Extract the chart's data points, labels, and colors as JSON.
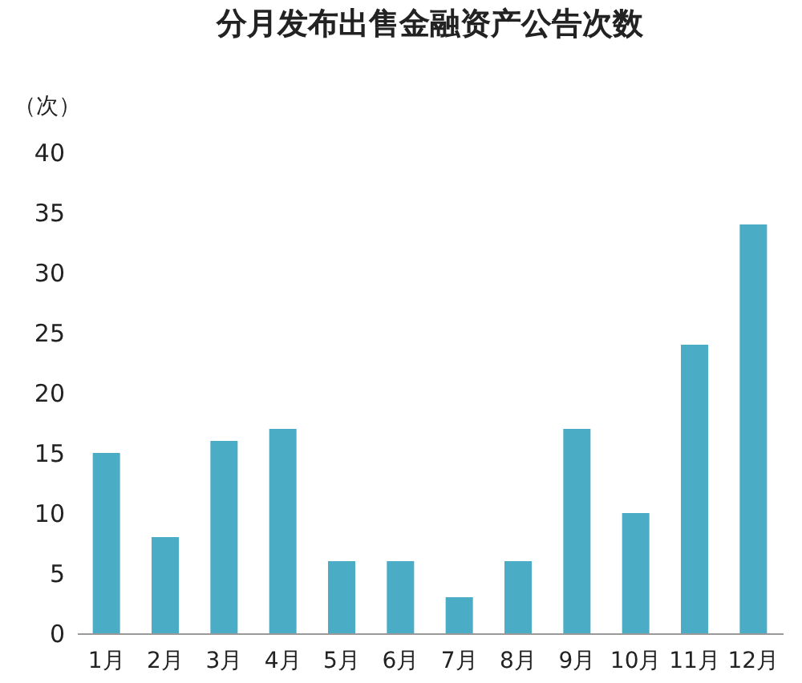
{
  "chart_data": {
    "type": "bar",
    "title": "分月发布出售金融资产公告次数",
    "ylabel": "（次）",
    "categories": [
      "1月",
      "2月",
      "3月",
      "4月",
      "5月",
      "6月",
      "7月",
      "8月",
      "9月",
      "10月",
      "11月",
      "12月"
    ],
    "values": [
      15,
      8,
      16,
      17,
      6,
      6,
      3,
      6,
      17,
      10,
      24,
      34
    ],
    "color": "#4bacc6",
    "ylim": [
      0,
      40
    ],
    "yticks": [
      0,
      5,
      10,
      15,
      20,
      25,
      30,
      35,
      40
    ],
    "grid": false
  }
}
